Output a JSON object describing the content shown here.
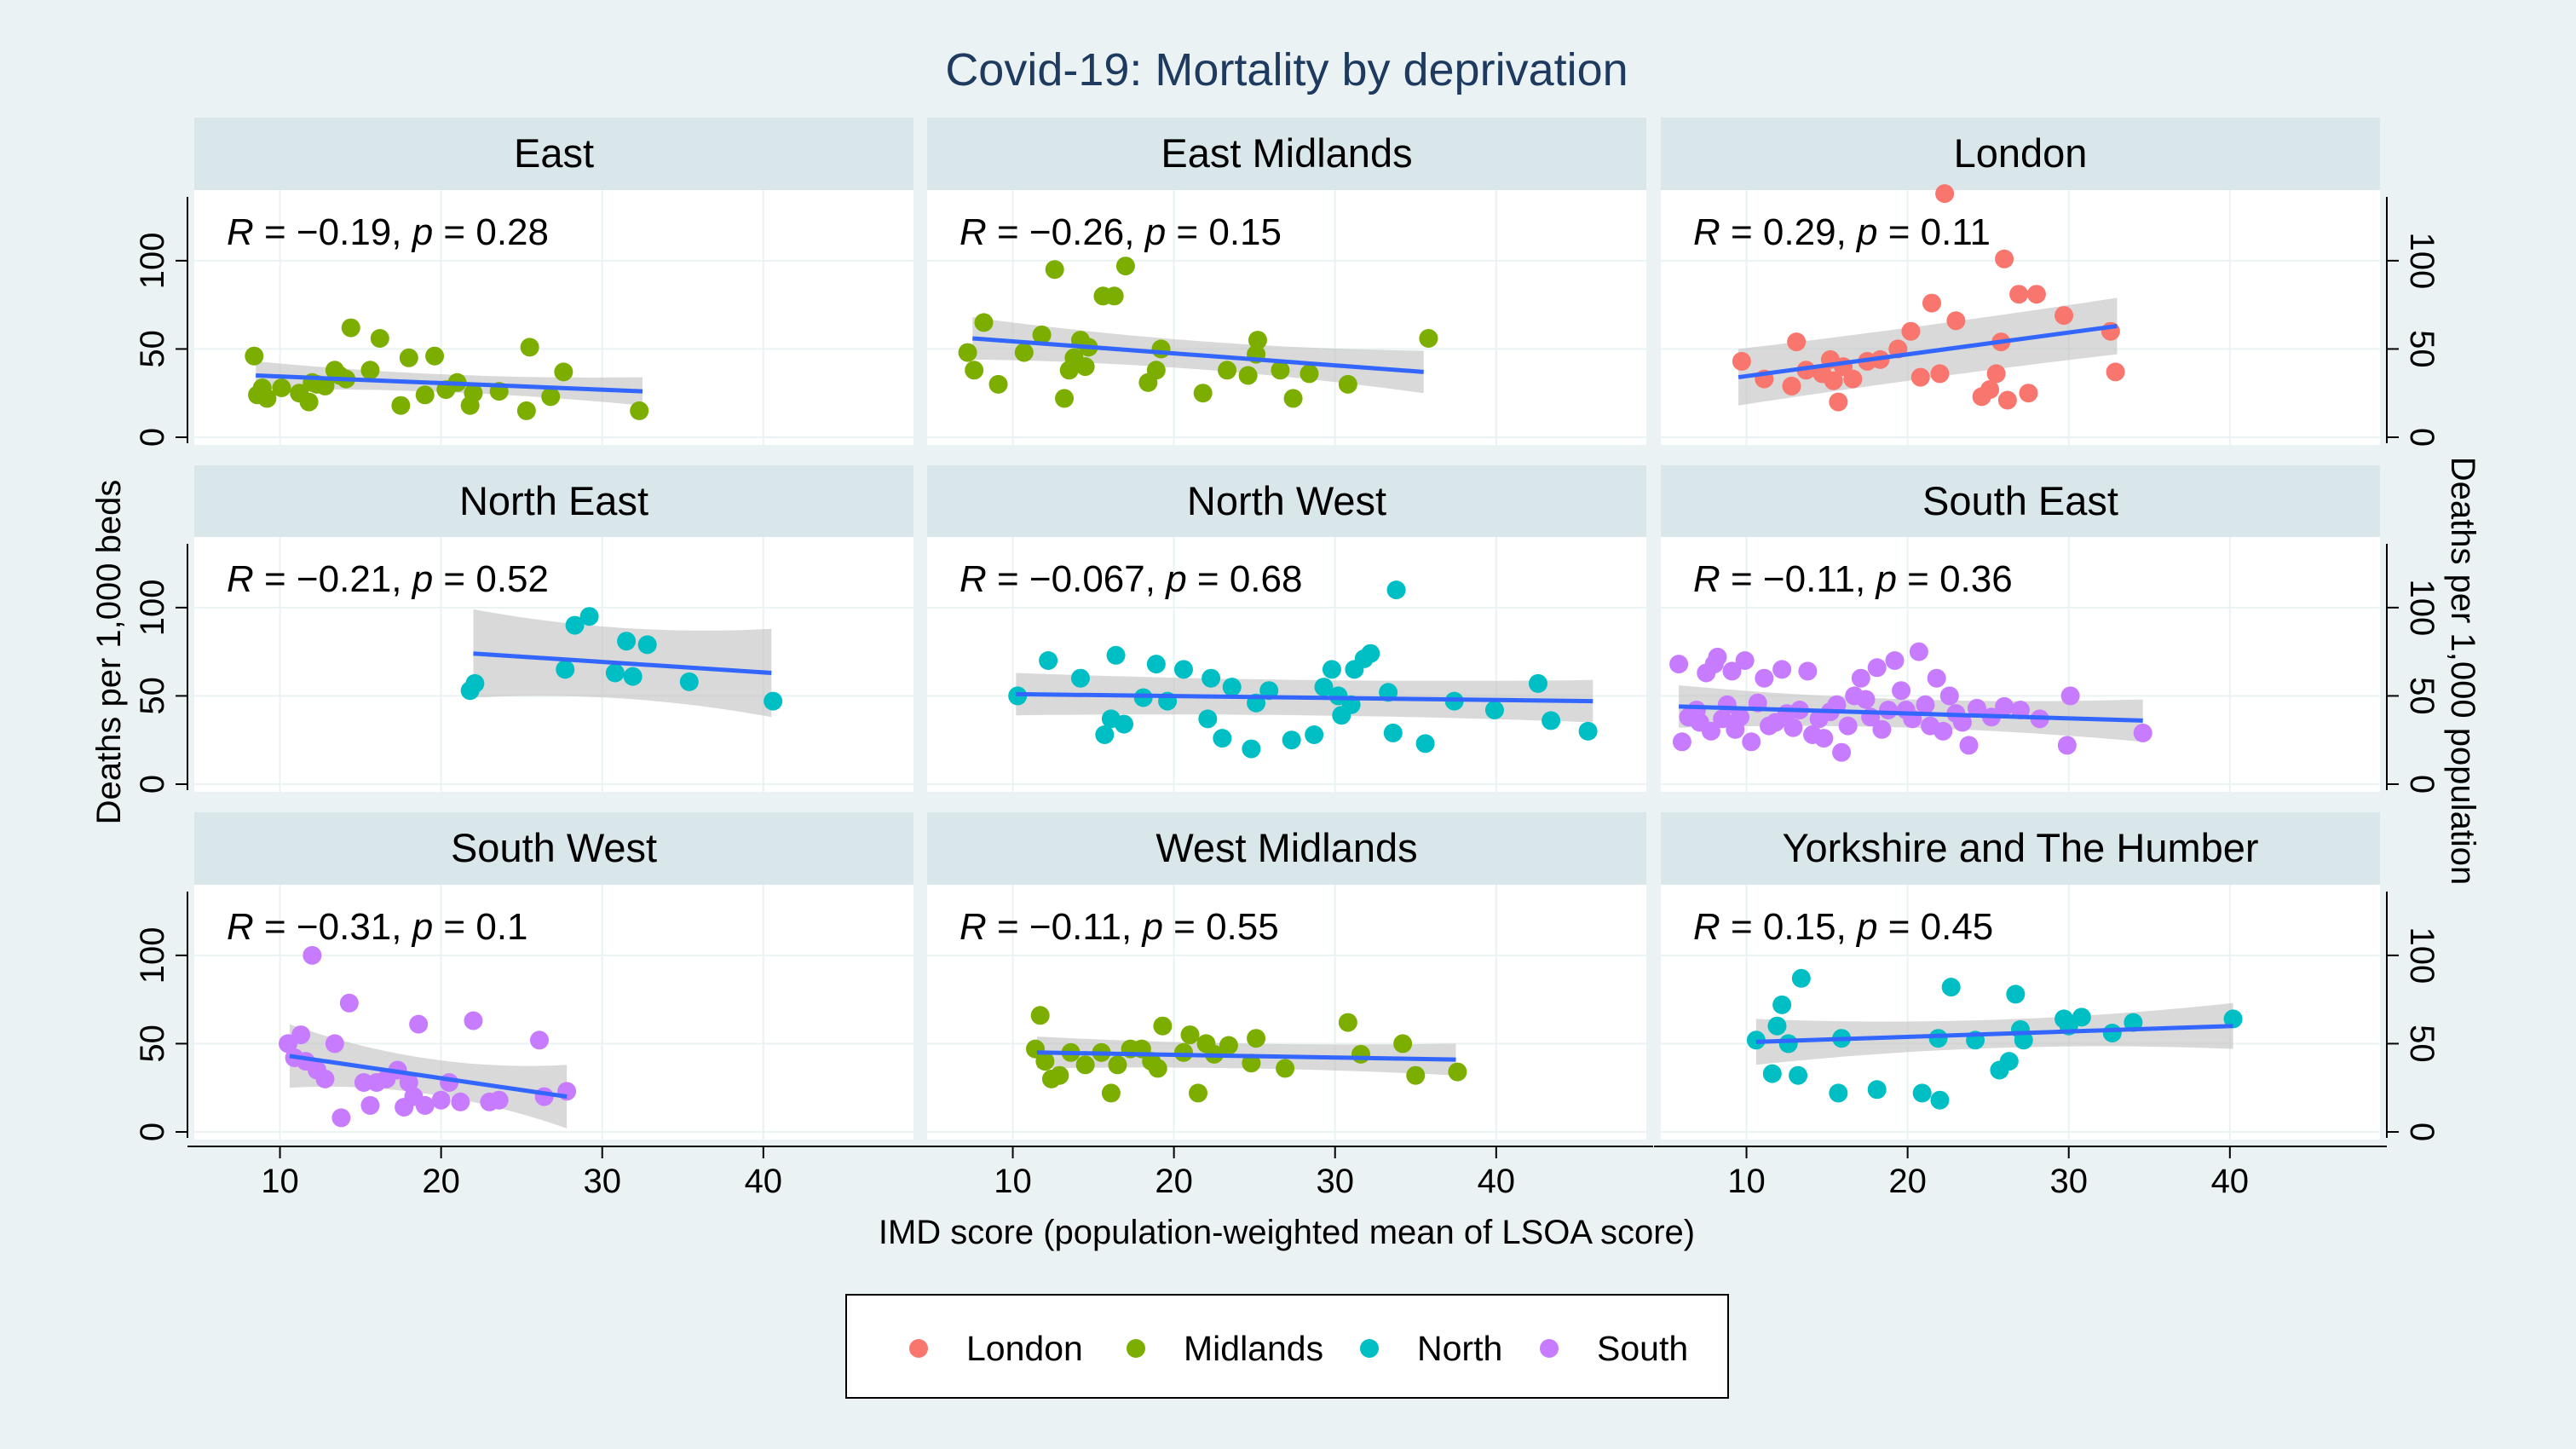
{
  "title": "Covid-19: Mortality by deprivation",
  "colors": {
    "London": "#f8766d",
    "Midlands": "#7cae00",
    "North": "#00bfc4",
    "South": "#c77cff",
    "fit_line": "#3366ff",
    "ci_band": "#bfbfbf",
    "strip": "#d9e6ea",
    "panel": "#ffffff",
    "grid": "#eaf2f3",
    "background": "#eaf2f3"
  },
  "chart_data": {
    "type": "scatter",
    "xlabel": "IMD score (population-weighted mean of LSOA score)",
    "ylabel_left": "Deaths per 1,000 beds",
    "ylabel_right": "Deaths per 1,000 population",
    "xlim": [
      5,
      49
    ],
    "ylim": [
      0,
      140
    ],
    "xticks": [
      10,
      20,
      30,
      40
    ],
    "yticks": [
      0,
      50,
      100
    ],
    "legend": {
      "position": "bottom",
      "entries": [
        {
          "name": "London",
          "color": "#f8766d"
        },
        {
          "name": "Midlands",
          "color": "#7cae00"
        },
        {
          "name": "North",
          "color": "#00bfc4"
        },
        {
          "name": "South",
          "color": "#c77cff"
        }
      ]
    },
    "panels": [
      {
        "region": "East",
        "group": "Midlands",
        "R": "−0.19",
        "p": "0.28",
        "fit": {
          "x": [
            8.5,
            32.5
          ],
          "y": [
            35,
            26
          ]
        },
        "ci": [
          5,
          8
        ],
        "x": [
          8.4,
          8.6,
          8.9,
          9.2,
          10.1,
          11.2,
          11.8,
          12.0,
          12.3,
          12.8,
          13.4,
          13.7,
          14.1,
          14.4,
          15.6,
          16.2,
          17.5,
          18.0,
          19.0,
          19.6,
          20.3,
          21.0,
          21.8,
          22.0,
          23.6,
          25.3,
          25.5,
          26.8,
          27.6,
          32.3
        ],
        "y": [
          46,
          24,
          28,
          22,
          28,
          25,
          20,
          31,
          30,
          29,
          38,
          35,
          33,
          62,
          38,
          56,
          18,
          45,
          24,
          46,
          27,
          31,
          18,
          25,
          26,
          15,
          51,
          23,
          37,
          15
        ]
      },
      {
        "region": "East Midlands",
        "group": "Midlands",
        "R": "−0.26",
        "p": "0.15",
        "fit": {
          "x": [
            7.5,
            35.5
          ],
          "y": [
            56,
            37
          ]
        },
        "ci": [
          8,
          12
        ],
        "x": [
          7.2,
          7.6,
          8.2,
          9.1,
          10.7,
          11.8,
          12.6,
          13.2,
          13.5,
          13.8,
          14.2,
          14.5,
          14.7,
          15.6,
          16.3,
          17.0,
          18.4,
          18.9,
          19.2,
          21.8,
          23.3,
          24.6,
          25.1,
          25.2,
          26.6,
          27.4,
          28.4,
          30.8,
          35.8
        ],
        "y": [
          48,
          38,
          65,
          30,
          48,
          58,
          95,
          22,
          38,
          45,
          55,
          40,
          51,
          80,
          80,
          97,
          31,
          38,
          50,
          25,
          38,
          35,
          47,
          55,
          38,
          22,
          36,
          30,
          56
        ]
      },
      {
        "region": "London",
        "group": "London",
        "R": "0.29",
        "p": "0.11",
        "fit": {
          "x": [
            9.5,
            33.0
          ],
          "y": [
            34,
            63
          ]
        },
        "ci": [
          15,
          16
        ],
        "x": [
          9.7,
          11.1,
          12.8,
          13.1,
          13.7,
          14.7,
          15.2,
          15.4,
          15.7,
          16.0,
          16.6,
          17.5,
          18.3,
          19.4,
          20.2,
          20.8,
          21.5,
          22.0,
          22.3,
          23.0,
          24.6,
          25.1,
          25.5,
          25.8,
          26.0,
          26.2,
          26.9,
          27.5,
          28.0,
          29.7,
          32.6,
          32.9
        ],
        "y": [
          43,
          33,
          29,
          54,
          38,
          36,
          44,
          32,
          20,
          40,
          33,
          43,
          44,
          50,
          60,
          34,
          76,
          36,
          138,
          66,
          23,
          27,
          36,
          54,
          101,
          21,
          81,
          25,
          81,
          69,
          60,
          37
        ]
      },
      {
        "region": "North East",
        "group": "North",
        "R": "−0.21",
        "p": "0.52",
        "fit": {
          "x": [
            22.0,
            40.5
          ],
          "y": [
            74,
            63
          ]
        },
        "ci": [
          20,
          25
        ],
        "x": [
          21.8,
          22.1,
          27.7,
          28.3,
          29.2,
          30.8,
          31.5,
          31.9,
          32.8,
          35.4,
          40.6
        ],
        "y": [
          53,
          57,
          65,
          90,
          95,
          63,
          81,
          61,
          79,
          58,
          47
        ]
      },
      {
        "region": "North West",
        "group": "North",
        "R": "−0.067",
        "p": "0.68",
        "fit": {
          "x": [
            10.2,
            46.0
          ],
          "y": [
            51,
            47
          ]
        },
        "ci": [
          10,
          12
        ],
        "x": [
          10.3,
          12.2,
          14.2,
          15.7,
          16.1,
          16.4,
          16.9,
          18.1,
          18.9,
          19.6,
          20.6,
          22.1,
          22.3,
          23.0,
          23.6,
          24.8,
          25.1,
          25.9,
          27.3,
          28.7,
          29.3,
          29.8,
          30.2,
          30.4,
          31.0,
          31.2,
          31.8,
          32.2,
          33.3,
          33.6,
          33.8,
          35.6,
          37.4,
          39.9,
          42.6,
          43.4,
          45.7
        ],
        "y": [
          50,
          70,
          60,
          28,
          37,
          73,
          34,
          49,
          68,
          47,
          65,
          37,
          60,
          26,
          55,
          20,
          46,
          53,
          25,
          28,
          55,
          65,
          50,
          39,
          45,
          65,
          71,
          74,
          52,
          29,
          110,
          23,
          47,
          42,
          57,
          36,
          30
        ]
      },
      {
        "region": "South East",
        "group": "South",
        "R": "−0.11",
        "p": "0.36",
        "fit": {
          "x": [
            5.8,
            34.6
          ],
          "y": [
            44,
            36
          ]
        },
        "ci": [
          8,
          12
        ],
        "x": [
          5.8,
          6.0,
          6.4,
          6.9,
          7.1,
          7.5,
          7.8,
          8.0,
          8.2,
          8.5,
          8.8,
          9.1,
          9.3,
          9.6,
          9.9,
          10.3,
          10.7,
          11.1,
          11.4,
          11.8,
          12.2,
          12.5,
          12.9,
          13.3,
          13.8,
          14.1,
          14.5,
          14.8,
          15.2,
          15.6,
          15.9,
          16.3,
          16.7,
          17.1,
          17.4,
          17.7,
          18.1,
          18.4,
          18.8,
          19.2,
          19.6,
          19.9,
          20.3,
          20.7,
          21.1,
          21.4,
          21.8,
          22.2,
          22.6,
          23.0,
          23.4,
          23.8,
          24.3,
          25.2,
          26.0,
          27.0,
          28.2,
          29.9,
          30.1,
          34.6
        ],
        "y": [
          68,
          24,
          38,
          42,
          35,
          63,
          30,
          68,
          72,
          37,
          45,
          64,
          31,
          38,
          70,
          24,
          46,
          60,
          33,
          35,
          65,
          40,
          32,
          42,
          64,
          28,
          37,
          26,
          41,
          45,
          18,
          33,
          50,
          60,
          48,
          38,
          66,
          31,
          42,
          70,
          53,
          42,
          37,
          75,
          45,
          33,
          60,
          30,
          50,
          40,
          35,
          22,
          43,
          38,
          44,
          42,
          37,
          22,
          50,
          29
        ]
      },
      {
        "region": "South West",
        "group": "South",
        "R": "−0.31",
        "p": "0.1",
        "fit": {
          "x": [
            10.6,
            27.8
          ],
          "y": [
            43,
            20
          ]
        },
        "ci": [
          10,
          18
        ],
        "x": [
          10.5,
          10.9,
          11.3,
          11.6,
          12.0,
          12.3,
          12.8,
          13.4,
          13.8,
          14.3,
          15.2,
          15.6,
          16.0,
          16.6,
          17.3,
          17.7,
          18.0,
          18.3,
          18.6,
          19.0,
          20.0,
          20.5,
          21.2,
          22.0,
          23.0,
          23.6,
          26.1,
          26.4,
          27.8
        ],
        "y": [
          50,
          42,
          55,
          40,
          100,
          35,
          30,
          50,
          8,
          73,
          28,
          15,
          28,
          30,
          35,
          14,
          28,
          20,
          61,
          15,
          18,
          28,
          17,
          63,
          17,
          18,
          52,
          20,
          23
        ]
      },
      {
        "region": "West Midlands",
        "group": "Midlands",
        "R": "−0.11",
        "p": "0.55",
        "fit": {
          "x": [
            11.5,
            37.5
          ],
          "y": [
            45,
            41
          ]
        },
        "ci": [
          7,
          9
        ],
        "x": [
          11.4,
          11.7,
          12.0,
          12.4,
          12.9,
          13.6,
          14.5,
          15.5,
          16.1,
          16.5,
          17.3,
          18.0,
          18.6,
          19.0,
          19.3,
          20.6,
          21.0,
          21.5,
          22.0,
          22.5,
          23.4,
          24.8,
          25.1,
          26.9,
          30.8,
          31.6,
          34.2,
          35.0,
          37.6
        ],
        "y": [
          47,
          66,
          40,
          30,
          32,
          45,
          38,
          45,
          22,
          38,
          47,
          47,
          40,
          36,
          60,
          45,
          55,
          22,
          50,
          44,
          49,
          39,
          53,
          36,
          62,
          44,
          50,
          32,
          34
        ]
      },
      {
        "region": "Yorkshire and The Humber",
        "group": "North",
        "R": "0.15",
        "p": "0.45",
        "fit": {
          "x": [
            10.6,
            40.2
          ],
          "y": [
            51,
            60
          ]
        },
        "ci": [
          8,
          13
        ],
        "x": [
          10.6,
          11.6,
          11.9,
          12.2,
          12.6,
          13.2,
          13.4,
          15.7,
          15.9,
          18.1,
          20.9,
          21.9,
          22.0,
          22.7,
          24.2,
          25.7,
          26.3,
          26.7,
          27.0,
          27.2,
          29.7,
          30.0,
          30.8,
          32.7,
          34.0,
          40.2
        ],
        "y": [
          52,
          33,
          60,
          72,
          50,
          32,
          87,
          22,
          53,
          24,
          22,
          53,
          18,
          82,
          52,
          35,
          40,
          78,
          58,
          52,
          64,
          60,
          65,
          56,
          62,
          64
        ]
      }
    ]
  }
}
